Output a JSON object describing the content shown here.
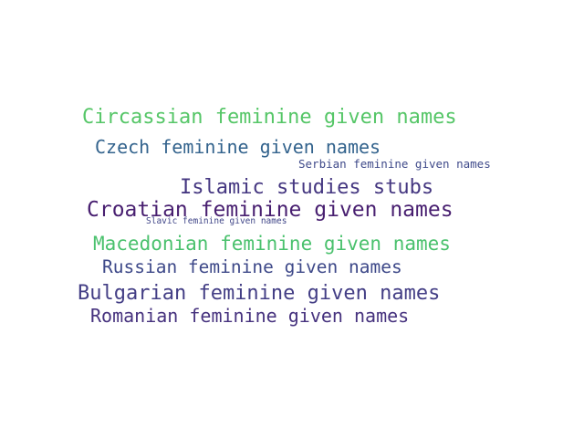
{
  "words": [
    {
      "text": "Circassian feminine given names",
      "color": "#55c667"
    },
    {
      "text": "Czech feminine given names",
      "color": "#33638d"
    },
    {
      "text": "Serbian feminine given names",
      "color": "#3f4a8a"
    },
    {
      "text": "Islamic studies stubs",
      "color": "#453781"
    },
    {
      "text": "Croatian feminine given names",
      "color": "#481f70"
    },
    {
      "text": "Slavic feminine given names",
      "color": "#404688"
    },
    {
      "text": "Macedonian feminine given names",
      "color": "#4ac16d"
    },
    {
      "text": "Russian feminine given names",
      "color": "#3e4989"
    },
    {
      "text": "Bulgarian feminine given names",
      "color": "#433e85"
    },
    {
      "text": "Romanian feminine given names",
      "color": "#46327e"
    }
  ]
}
